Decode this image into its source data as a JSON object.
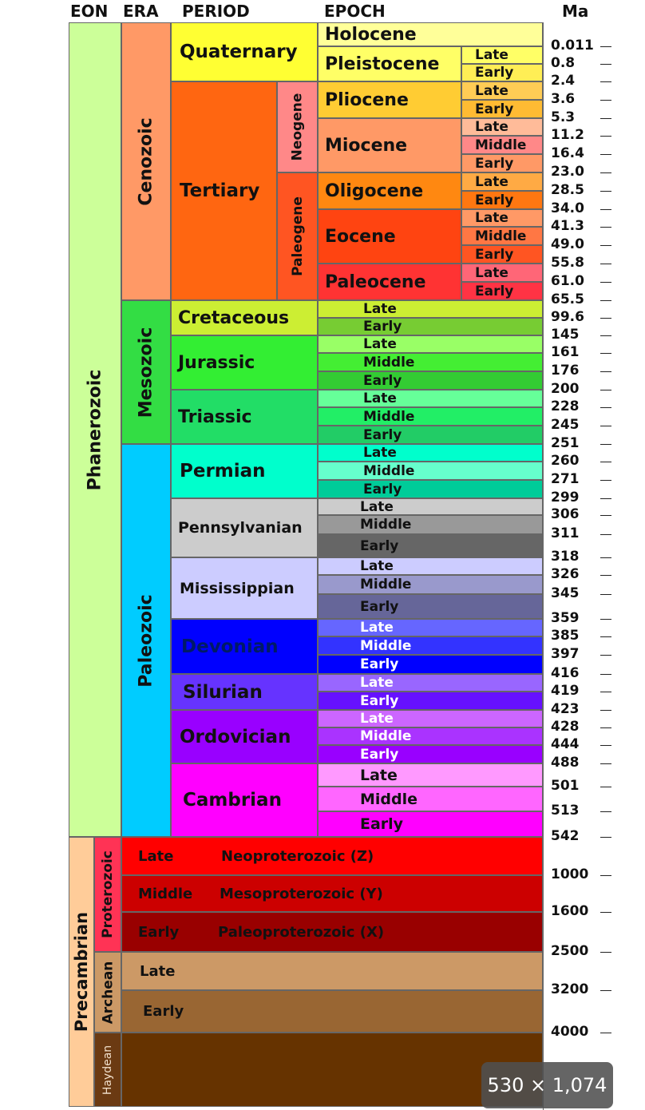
{
  "headers": {
    "eon": "EON",
    "era": "ERA",
    "period": "PERIOD",
    "epoch": "EPOCH",
    "ma": "Ma"
  },
  "eons": [
    "Phanerozoic",
    "Precambrian"
  ],
  "eras": [
    "Cenozoic",
    "Mesozoic",
    "Paleozoic",
    "Proterozoic",
    "Archean",
    "Haydean"
  ],
  "subperiods": [
    "Neogene",
    "Paleogene"
  ],
  "periods": [
    "Quaternary",
    "Tertiary",
    "Cretaceous",
    "Jurassic",
    "Triassic",
    "Permian",
    "Pennsylvanian",
    "Mississippian",
    "Devonian",
    "Silurian",
    "Ordovician",
    "Cambrian"
  ],
  "epochs": [
    "Holocene",
    "Pleistocene",
    "Pliocene",
    "Miocene",
    "Oligocene",
    "Eocene",
    "Paleocene"
  ],
  "stage_labels": {
    "late": "Late",
    "middle": "Middle",
    "early": "Early"
  },
  "precambrian_rows": [
    {
      "stage": "Late",
      "name": "Neoproterozoic (Z)"
    },
    {
      "stage": "Middle",
      "name": "Mesoproterozoic (Y)"
    },
    {
      "stage": "Early",
      "name": "Paleoproterozoic (X)"
    },
    {
      "stage": "Late",
      "name": ""
    },
    {
      "stage": "Early",
      "name": ""
    }
  ],
  "ma_values": [
    "0.011",
    "0.8",
    "2.4",
    "3.6",
    "5.3",
    "11.2",
    "16.4",
    "23.0",
    "28.5",
    "34.0",
    "41.3",
    "49.0",
    "55.8",
    "61.0",
    "65.5",
    "99.6",
    "145",
    "161",
    "176",
    "200",
    "228",
    "245",
    "251",
    "260",
    "271",
    "299",
    "306",
    "311",
    "318",
    "326",
    "345",
    "359",
    "385",
    "397",
    "416",
    "419",
    "423",
    "428",
    "444",
    "488",
    "501",
    "513",
    "542",
    "1000",
    "1600",
    "2500",
    "3200",
    "4000"
  ],
  "image_size": "530 × 1,074",
  "colors": {
    "phanerozoic": "#ccff99",
    "precambrian": "#ffcc99",
    "cenozoic": "#ff9966",
    "mesozoic": "#33dd44",
    "paleozoic": "#00ccff",
    "proterozoic": "#ff3355",
    "archean": "#cc9966",
    "haydean": "#6b3a12",
    "quaternary": "#ffff33",
    "tertiary": "#ff6611",
    "neogene": "#ff8888",
    "paleogene": "#ff5522",
    "cretaceous": "#ccee33",
    "jurassic": "#33ee33",
    "triassic": "#22dd66",
    "permian": "#00ffcc",
    "pennsylvanian": "#cccccc",
    "mississippian": "#ccccff",
    "devonian": "#0000ff",
    "silurian": "#6633ff",
    "ordovician": "#9900ff",
    "cambrian": "#ff00ff"
  }
}
